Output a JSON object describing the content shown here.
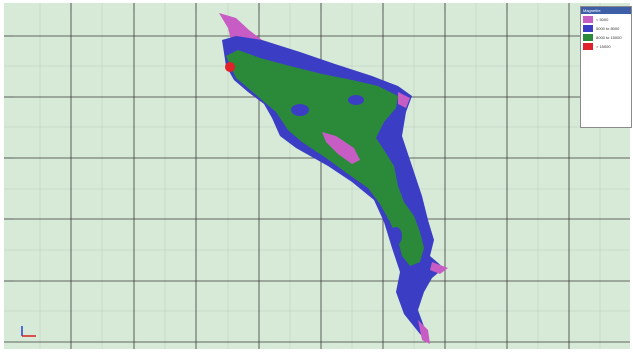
{
  "legend": {
    "title": "Magnetite",
    "items": [
      {
        "label": "< 5000",
        "color": "#c75cc4"
      },
      {
        "label": "5000 to 8000",
        "color": "#3b3ec4"
      },
      {
        "label": "8000 to 15000",
        "color": "#2b8a3a"
      },
      {
        "label": "> 15000",
        "color": "#e0202a"
      }
    ]
  },
  "colors": {
    "background": "#d7ead7",
    "grid_major": "#3a3a3a",
    "grid_minor": "#b9c9b9",
    "low": "#c75cc4",
    "medium": "#3b3ec4",
    "high": "#2b8a3a",
    "very_high": "#e0202a"
  },
  "axis_triad": {
    "x_color": "#d42020",
    "y_color": "#2a3fd6"
  }
}
